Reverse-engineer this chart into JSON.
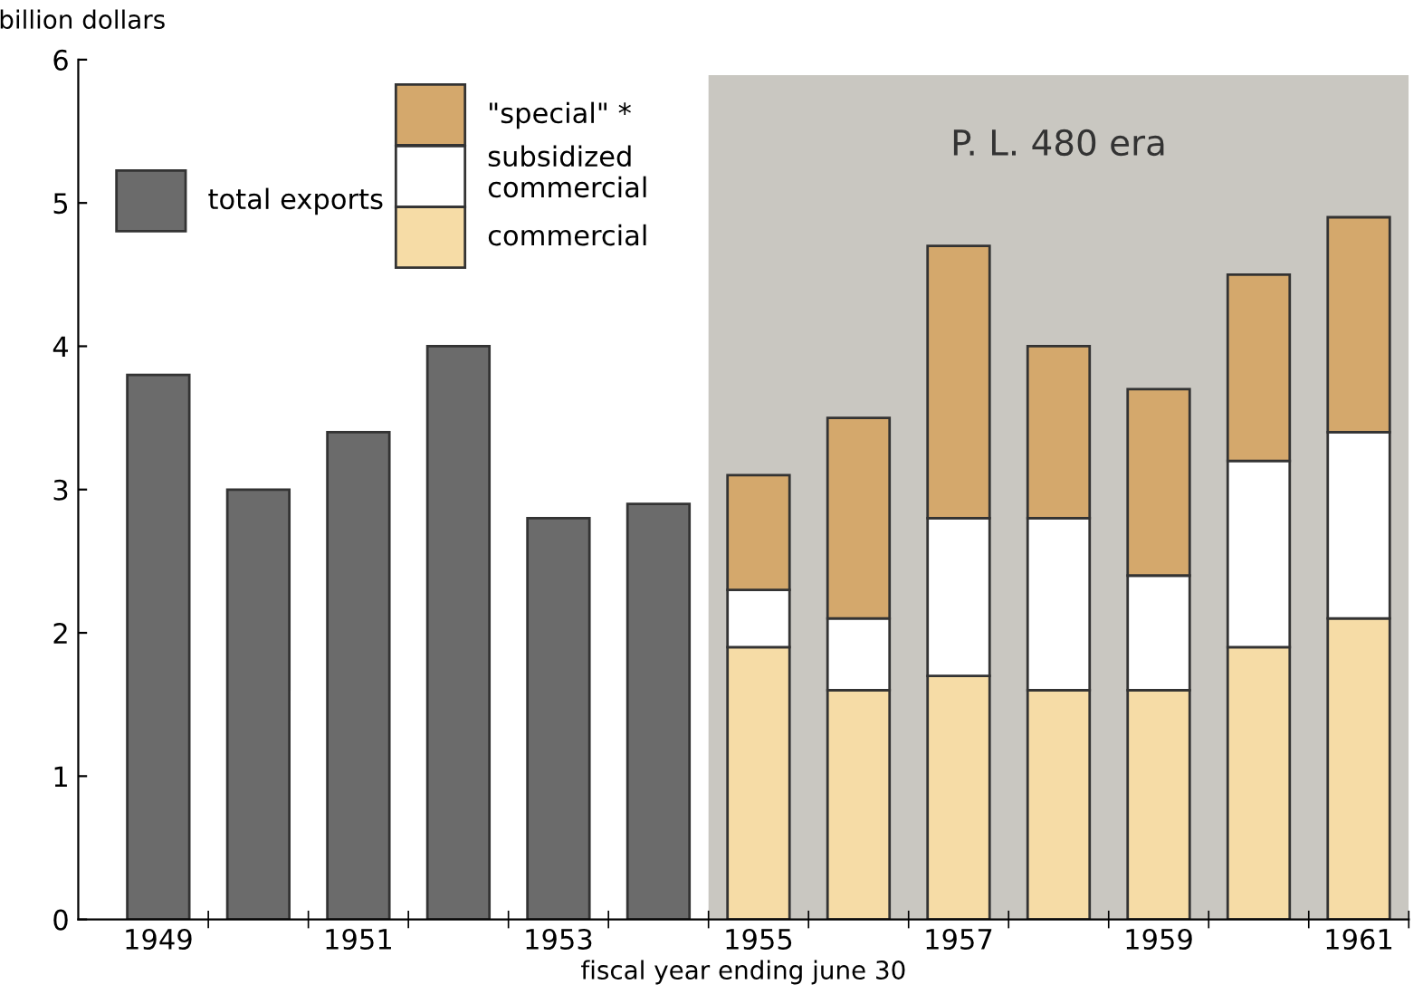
{
  "chart_data": {
    "type": "bar",
    "stacked": true,
    "ylabel": "billion dollars",
    "xlabel": "fiscal year ending june 30",
    "categories": [
      "1949",
      null,
      "1951",
      null,
      "1953",
      null,
      "1955",
      null,
      "1957",
      null,
      "1959",
      null,
      "1961"
    ],
    "series": [
      {
        "name": "total exports",
        "color": "#6b6b6b",
        "values": [
          3.8,
          3.0,
          3.4,
          4.0,
          2.8,
          2.9,
          null,
          null,
          null,
          null,
          null,
          null,
          null
        ]
      },
      {
        "name": "commercial",
        "color": "#f6dca6",
        "values": [
          null,
          null,
          null,
          null,
          null,
          null,
          1.9,
          1.6,
          1.7,
          1.6,
          1.6,
          1.9,
          2.1
        ]
      },
      {
        "name": "subsidized\ncommercial",
        "color": "#ffffff",
        "values": [
          null,
          null,
          null,
          null,
          null,
          null,
          0.4,
          0.5,
          1.1,
          1.2,
          0.8,
          1.3,
          1.3
        ]
      },
      {
        "name": "\"special\" *",
        "color": "#d4a86c",
        "values": [
          null,
          null,
          null,
          null,
          null,
          null,
          0.8,
          1.4,
          1.9,
          1.2,
          1.3,
          1.3,
          1.5
        ]
      }
    ],
    "ylim": [
      0,
      6
    ],
    "yticks": [
      0,
      1,
      2,
      3,
      4,
      5,
      6
    ],
    "bands": [
      {
        "axis": "x",
        "from": "1955",
        "to": "1961",
        "label": "P. L. 480 era",
        "color": "#c9c7c1"
      }
    ],
    "grid": false,
    "legend": "top left"
  }
}
